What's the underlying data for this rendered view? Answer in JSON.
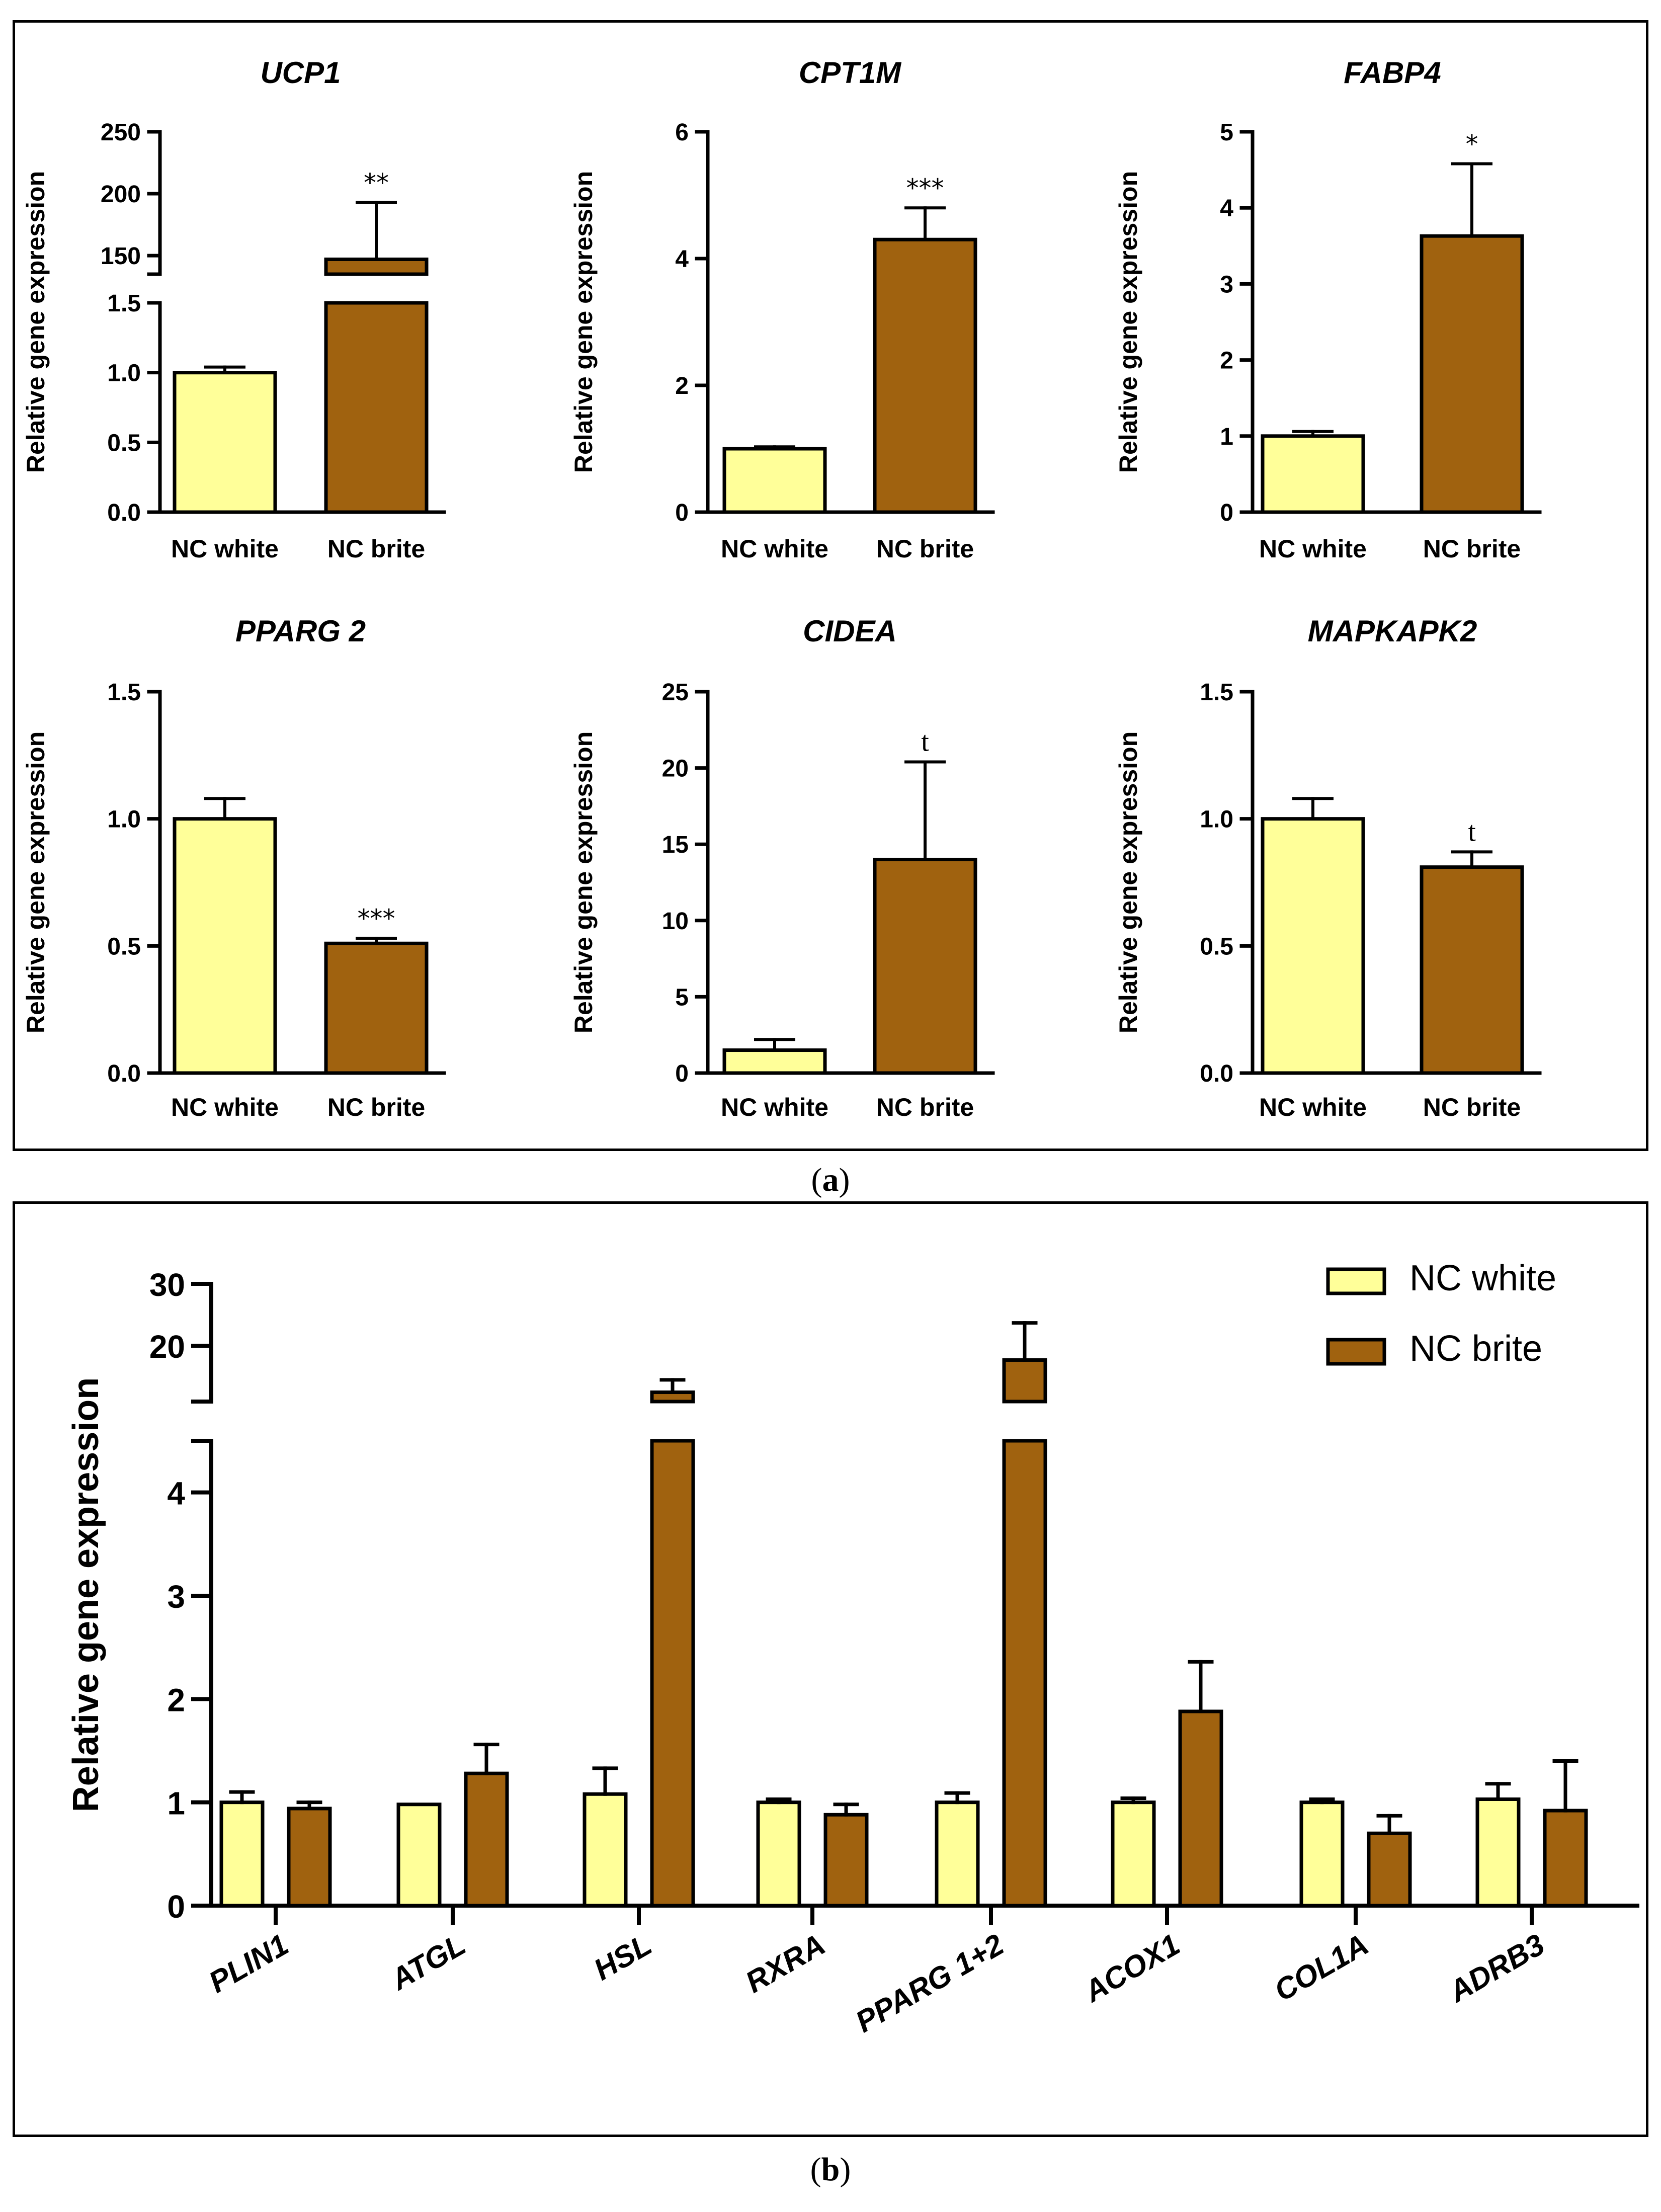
{
  "figure": {
    "panel_a_label": "a",
    "panel_b_label": "b"
  },
  "colors": {
    "white_fill": "#FFFF99",
    "brite_fill": "#A0620F",
    "axis": "#000000"
  },
  "chart_data": [
    {
      "type": "bar",
      "title": "UCP1",
      "ylabel": "Relative gene expression",
      "categories": [
        "NC white",
        "NC brite"
      ],
      "values": [
        1.0,
        147
      ],
      "errors": [
        0.04,
        46
      ],
      "significance": [
        "",
        "**"
      ],
      "y_break": true,
      "lower_ticks": [
        "0.0",
        "0.5",
        "1.0",
        "1.5"
      ],
      "upper_ticks": [
        "150",
        "200",
        "250"
      ],
      "lower_range": [
        0,
        1.5
      ],
      "upper_range": [
        135,
        250
      ]
    },
    {
      "type": "bar",
      "title": "CPT1M",
      "ylabel": "Relative gene expression",
      "categories": [
        "NC white",
        "NC brite"
      ],
      "values": [
        1.0,
        4.3
      ],
      "errors": [
        0.03,
        0.5
      ],
      "significance": [
        "",
        "***"
      ],
      "ylim": [
        0,
        6
      ],
      "ticks": [
        "0",
        "2",
        "4",
        "6"
      ]
    },
    {
      "type": "bar",
      "title": "FABP4",
      "ylabel": "Relative gene expression",
      "categories": [
        "NC white",
        "NC brite"
      ],
      "values": [
        1.0,
        3.63
      ],
      "errors": [
        0.06,
        0.95
      ],
      "significance": [
        "",
        "*"
      ],
      "ylim": [
        0,
        5
      ],
      "ticks": [
        "0",
        "1",
        "2",
        "3",
        "4",
        "5"
      ]
    },
    {
      "type": "bar",
      "title": "PPARG 2",
      "ylabel": "Relative gene expression",
      "categories": [
        "NC white",
        "NC brite"
      ],
      "values": [
        1.0,
        0.51
      ],
      "errors": [
        0.08,
        0.02
      ],
      "significance": [
        "",
        "***"
      ],
      "ylim": [
        0,
        1.5
      ],
      "ticks": [
        "0.0",
        "0.5",
        "1.0",
        "1.5"
      ]
    },
    {
      "type": "bar",
      "title": "CIDEA",
      "ylabel": "Relative gene expression",
      "categories": [
        "NC white",
        "NC brite"
      ],
      "values": [
        1.5,
        14
      ],
      "errors": [
        0.7,
        6.4
      ],
      "significance": [
        "",
        "t"
      ],
      "ylim": [
        0,
        25
      ],
      "ticks": [
        "0",
        "5",
        "10",
        "15",
        "20",
        "25"
      ]
    },
    {
      "type": "bar",
      "title": "MAPKAPK2",
      "ylabel": "Relative gene expression",
      "categories": [
        "NC white",
        "NC brite"
      ],
      "values": [
        1.0,
        0.81
      ],
      "errors": [
        0.08,
        0.06
      ],
      "significance": [
        "",
        "t"
      ],
      "ylim": [
        0,
        1.5
      ],
      "ticks": [
        "0.0",
        "0.5",
        "1.0",
        "1.5"
      ]
    },
    {
      "type": "bar",
      "title": "",
      "ylabel": "Relative gene expression",
      "categories": [
        "PLIN1",
        "ATGL",
        "HSL",
        "RXRA",
        "PPARG 1+2",
        "ACOX1",
        "COL1A",
        "ADRB3"
      ],
      "series": [
        {
          "name": "NC white",
          "values": [
            1.0,
            0.98,
            1.08,
            1.0,
            1.0,
            1.0,
            1.0,
            1.03
          ],
          "errors": [
            0.1,
            0.0,
            0.25,
            0.03,
            0.09,
            0.04,
            0.03,
            0.15
          ]
        },
        {
          "name": "NC brite",
          "values": [
            0.94,
            1.28,
            12.5,
            0.88,
            17.7,
            1.88,
            0.7,
            0.92
          ],
          "errors": [
            0.06,
            0.28,
            2.0,
            0.1,
            6.0,
            0.48,
            0.17,
            0.48
          ]
        }
      ],
      "legend": [
        "NC white",
        "NC brite"
      ],
      "y_break": true,
      "lower_ticks": [
        "0",
        "1",
        "2",
        "3",
        "4"
      ],
      "upper_ticks": [
        "20",
        "30"
      ],
      "lower_range": [
        0,
        4.5
      ],
      "upper_range": [
        11,
        30
      ]
    }
  ]
}
